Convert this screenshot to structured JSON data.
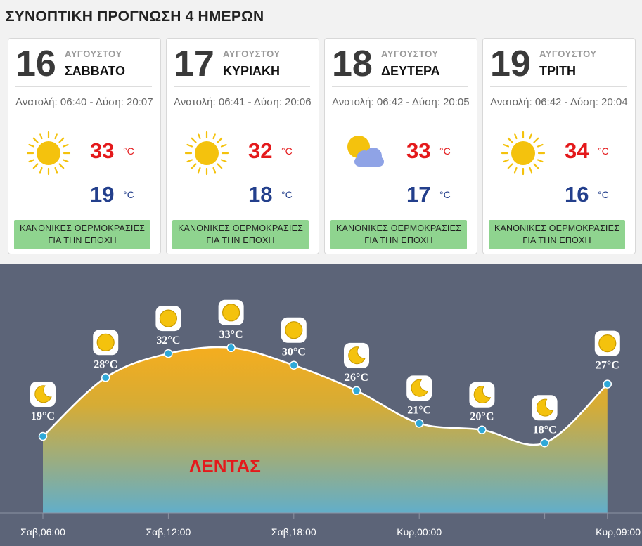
{
  "title": "ΣΥΝΟΠΤΙΚΗ ΠΡΟΓΝΩΣΗ 4 ΗΜΕΡΩΝ",
  "days": [
    {
      "day": "16",
      "month": "ΑΥΓΟΥΣΤΟΥ",
      "weekday": "ΣΑΒΒΑΤΟ",
      "sun": "Ανατολή: 06:40 - Δύση: 20:07",
      "icon": "sun-icon",
      "tmax": "33",
      "tmin": "19",
      "unit": "°C",
      "badge_line1": "ΚΑΝΟΝΙΚΕΣ ΘΕΡΜΟΚΡΑΣΙΕΣ",
      "badge_line2": "ΓΙΑ ΤΗΝ ΕΠΟΧΗ"
    },
    {
      "day": "17",
      "month": "ΑΥΓΟΥΣΤΟΥ",
      "weekday": "ΚΥΡΙΑΚΗ",
      "sun": "Ανατολή: 06:41 - Δύση: 20:06",
      "icon": "sun-icon",
      "tmax": "32",
      "tmin": "18",
      "unit": "°C",
      "badge_line1": "ΚΑΝΟΝΙΚΕΣ ΘΕΡΜΟΚΡΑΣΙΕΣ",
      "badge_line2": "ΓΙΑ ΤΗΝ ΕΠΟΧΗ"
    },
    {
      "day": "18",
      "month": "ΑΥΓΟΥΣΤΟΥ",
      "weekday": "ΔΕΥΤΕΡΑ",
      "sun": "Ανατολή: 06:42 - Δύση: 20:05",
      "icon": "partly-cloudy-icon",
      "tmax": "33",
      "tmin": "17",
      "unit": "°C",
      "badge_line1": "ΚΑΝΟΝΙΚΕΣ ΘΕΡΜΟΚΡΑΣΙΕΣ",
      "badge_line2": "ΓΙΑ ΤΗΝ ΕΠΟΧΗ"
    },
    {
      "day": "19",
      "month": "ΑΥΓΟΥΣΤΟΥ",
      "weekday": "ΤΡΙΤΗ",
      "sun": "Ανατολή: 06:42 - Δύση: 20:04",
      "icon": "sun-icon",
      "tmax": "34",
      "tmin": "16",
      "unit": "°C",
      "badge_line1": "ΚΑΝΟΝΙΚΕΣ ΘΕΡΜΟΚΡΑΣΙΕΣ",
      "badge_line2": "ΓΙΑ ΤΗΝ ΕΠΟΧΗ"
    }
  ],
  "colors": {
    "max": "#e4191b",
    "min": "#233f8c",
    "badge": "#8fd48f",
    "chart_bg": "#5c6478",
    "marker": "#2ea8d8",
    "area_top": "#f5ad1e",
    "area_bottom": "#62aec9"
  },
  "chart_data": {
    "type": "area",
    "location_label": "ΛΕΝΤΑΣ",
    "unit": "°C",
    "x": [
      "Σαβ,06:00",
      "Σαβ,09:00",
      "Σαβ,12:00",
      "Σαβ,15:00",
      "Σαβ,18:00",
      "Σαβ,21:00",
      "Κυρ,00:00",
      "Κυρ,03:00",
      "Κυρ,06:00",
      "Κυρ,09:00"
    ],
    "values": [
      19,
      28,
      32,
      33,
      30,
      26,
      21,
      20,
      18,
      27
    ],
    "icons": [
      "moon-icon",
      "sun-icon",
      "sun-icon",
      "sun-icon",
      "sun-icon",
      "moon-icon",
      "moon-icon",
      "moon-icon",
      "moon-icon",
      "sun-icon"
    ],
    "x_tick_labels": [
      "Σαβ,06:00",
      "Σαβ,12:00",
      "Σαβ,18:00",
      "Κυρ,00:00",
      "Κυρ,09:00"
    ],
    "x_tick_label_index": [
      0,
      2,
      4,
      6,
      9
    ]
  }
}
